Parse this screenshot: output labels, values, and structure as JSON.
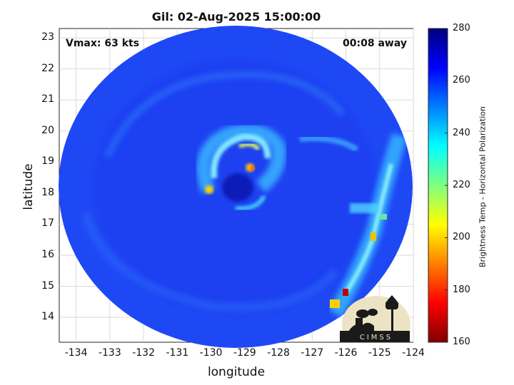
{
  "title": "Gil: 02-Aug-2025 15:00:00",
  "vmax_text": "Vmax: 63 kts",
  "away_text": "00:08 away",
  "xlabel": "longitude",
  "ylabel": "latitude",
  "colorbar_label": "Brightness Temp - Horizontal Polarization",
  "x_ticks": [
    "-134",
    "-133",
    "-132",
    "-131",
    "-130",
    "-129",
    "-128",
    "-127",
    "-126",
    "-125",
    "-124"
  ],
  "y_ticks": [
    "23",
    "22",
    "21",
    "20",
    "19",
    "18",
    "17",
    "16",
    "15",
    "14"
  ],
  "colorbar_ticks": [
    "280",
    "260",
    "240",
    "220",
    "200",
    "180",
    "160"
  ],
  "logo_text": "CIMSS",
  "chart_data": {
    "type": "heatmap",
    "title": "Gil: 02-Aug-2025 15:00:00",
    "xlabel": "longitude",
    "ylabel": "latitude",
    "xlim": [
      -134.5,
      -124
    ],
    "ylim": [
      13.2,
      23.3
    ],
    "clim": [
      160,
      280
    ],
    "colormap": "jet",
    "colorbar_label": "Brightness Temp - Horizontal Polarization",
    "grid": true,
    "storm_center": [
      -129,
      18.5
    ],
    "features": [
      {
        "name": "eye",
        "lon": -128.9,
        "lat": 18.3,
        "temp": 270
      },
      {
        "name": "eyewall min",
        "lon": -128.4,
        "lat": 18.8,
        "temp": 205
      },
      {
        "name": "eyewall",
        "lon": -128.9,
        "lat": 19.4,
        "temp": 225
      },
      {
        "name": "spiral band",
        "lon": -130.1,
        "lat": 18.1,
        "temp": 215
      },
      {
        "name": "outer band",
        "lon": -125.2,
        "lat": 16.5,
        "temp": 230
      },
      {
        "name": "outer band",
        "lon": -125.4,
        "lat": 17.4,
        "temp": 238
      },
      {
        "name": "outer band",
        "lon": -125.8,
        "lat": 14.7,
        "temp": 175
      }
    ]
  }
}
